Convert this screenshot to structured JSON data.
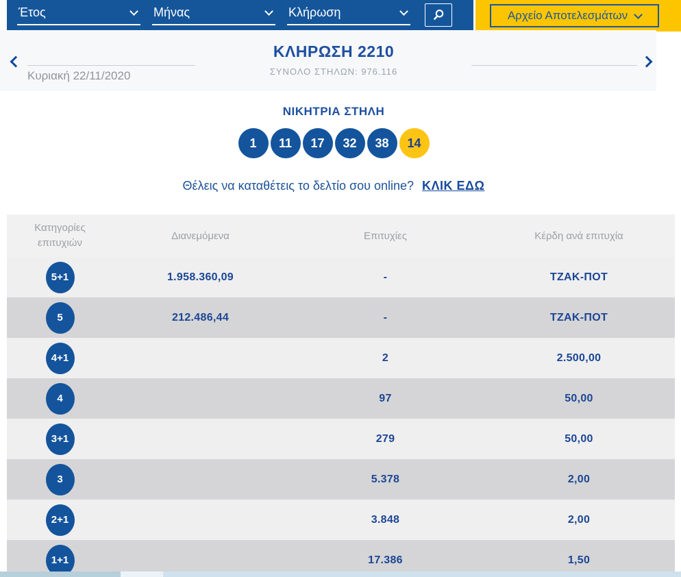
{
  "topbar": {
    "filters": [
      {
        "id": "year",
        "label": "Έτος"
      },
      {
        "id": "month",
        "label": "Μήνας"
      },
      {
        "id": "draw",
        "label": "Κλήρωση"
      }
    ],
    "archive_button": "Αρχείο Αποτελεσμάτων"
  },
  "draw_nav": {
    "date": "Κυριακή 22/11/2020",
    "title": "ΚΛΗΡΩΣΗ 2210",
    "total_columns": "ΣΥΝΟΛΟ ΣΤΗΛΩΝ: 976.116"
  },
  "winning_column": {
    "title": "ΝΙΚΗΤΡΙΑ ΣΤΗΛΗ",
    "numbers": [
      "1",
      "11",
      "17",
      "32",
      "38"
    ],
    "joker": "14"
  },
  "cta": {
    "text": "Θέλεις να καταθέτεις το δελτίο σου online?",
    "link": "ΚΛΙΚ ΕΔΩ"
  },
  "table": {
    "headers": [
      "Κατηγορίες επιτυχιών",
      "Διανεμόμενα",
      "Επιτυχίες",
      "Κέρδη ανά επιτυχία"
    ],
    "rows": [
      {
        "category": "5+1",
        "distributed": "1.958.360,09",
        "winners": "-",
        "prize": "ΤΖΑΚ-ΠΟΤ"
      },
      {
        "category": "5",
        "distributed": "212.486,44",
        "winners": "-",
        "prize": "ΤΖΑΚ-ΠΟΤ"
      },
      {
        "category": "4+1",
        "distributed": "",
        "winners": "2",
        "prize": "2.500,00"
      },
      {
        "category": "4",
        "distributed": "",
        "winners": "97",
        "prize": "50,00"
      },
      {
        "category": "3+1",
        "distributed": "",
        "winners": "279",
        "prize": "50,00"
      },
      {
        "category": "3",
        "distributed": "",
        "winners": "5.378",
        "prize": "2,00"
      },
      {
        "category": "2+1",
        "distributed": "",
        "winners": "3.848",
        "prize": "2,00"
      },
      {
        "category": "1+1",
        "distributed": "",
        "winners": "17.386",
        "prize": "1,50"
      }
    ]
  },
  "icons": {
    "search": "search-icon",
    "filter_chevron": "chevron-down-icon",
    "archive_chevron": "chevron-down-icon",
    "prev": "chevron-left-icon",
    "next": "chevron-right-icon"
  },
  "colors": {
    "topbar_blue": "#15569b",
    "panel_yellow": "#fdc500",
    "ball_blue": "#14549c",
    "ball_yellow": "#fdc413",
    "title_blue": "#1d4fa0",
    "value_blue": "#1b4693",
    "row_light": "#efeff0",
    "row_dark": "#d5d5d7",
    "muted_gray": "#9ca0a4"
  }
}
